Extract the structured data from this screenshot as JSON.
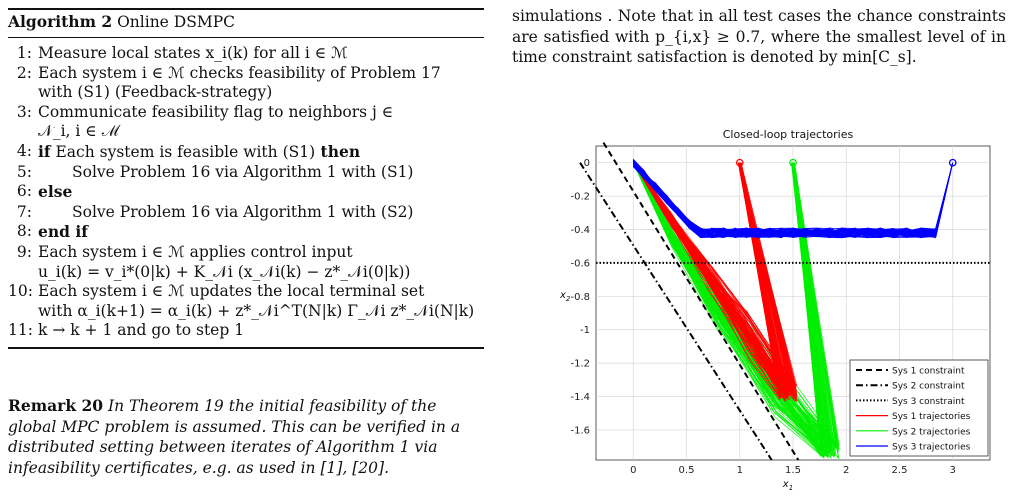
{
  "algorithm": {
    "label": "Algorithm 2",
    "name": "Online DSMPC",
    "steps": [
      {
        "num": "1:",
        "text": "Measure local states x_i(k) for all i ∈ ℳ"
      },
      {
        "num": "2:",
        "text": "Each system i ∈ ℳ checks feasibility of Problem 17"
      },
      {
        "num": "",
        "text": "with (S1) (Feedback-strategy)"
      },
      {
        "num": "3:",
        "text": "Communicate feasibility flag to neighbors j ∈"
      },
      {
        "num": "",
        "text": "𝒩_i, i ∈ ℳ"
      },
      {
        "num": "4:",
        "text": "if Each system is feasible with (S1) then"
      },
      {
        "num": "5:",
        "text": "Solve Problem 16 via Algorithm 1 with (S1)"
      },
      {
        "num": "6:",
        "text": "else"
      },
      {
        "num": "7:",
        "text": "Solve Problem 16 via Algorithm 1 with (S2)"
      },
      {
        "num": "8:",
        "text": "end if"
      },
      {
        "num": "9:",
        "text": "Each system i ∈ ℳ applies control input"
      },
      {
        "num": "",
        "text": "u_i(k) = v_i*(0|k) + K_𝒩i (x_𝒩i(k) − z*_𝒩i(0|k))"
      },
      {
        "num": "10:",
        "text": "Each system i ∈ ℳ updates the local terminal set"
      },
      {
        "num": "",
        "text": "with α_i(k+1) = α_i(k) + z*_𝒩i^T(N|k) Γ_𝒩i z*_𝒩i(N|k)"
      },
      {
        "num": "11:",
        "text": "k → k + 1 and go to step 1"
      }
    ]
  },
  "remark": {
    "label": "Remark 20",
    "text": "In Theorem 19 the initial feasibility of the global MPC problem is assumed. This can be verified in a distributed setting between iterates of Algorithm 1 via infeasibility certificates, e.g. as used in [1], [20]."
  },
  "right_paragraph": "simulations . Note that in all test cases the chance constraints are satisfied with p_{i,x} ≥ 0.7, where the smallest level of in time constraint satisfaction is denoted by min[C_s].",
  "chart_data": {
    "type": "line",
    "title": "Closed-loop trajectories",
    "xlabel": "x1",
    "ylabel": "x2",
    "xlim": [
      -0.35,
      3.35
    ],
    "ylim": [
      -1.78,
      0.1
    ],
    "xticks": [
      0,
      0.5,
      1,
      1.5,
      2,
      2.5,
      3
    ],
    "yticks": [
      0,
      -0.2,
      -0.4,
      -0.6,
      -0.8,
      -1,
      -1.2,
      -1.4,
      -1.6
    ],
    "grid": true,
    "legend_position": "bottom-right",
    "legend": [
      {
        "name": "Sys 1 constraint",
        "style": "dashed",
        "color": "#000000"
      },
      {
        "name": "Sys 2 constraint",
        "style": "dashdot",
        "color": "#000000"
      },
      {
        "name": "Sys 3 constraint",
        "style": "dotted",
        "color": "#000000"
      },
      {
        "name": "Sys 1 trajectories",
        "style": "solid",
        "color": "#ff0000"
      },
      {
        "name": "Sys 2 trajectories",
        "style": "solid",
        "color": "#00ee00"
      },
      {
        "name": "Sys 3 trajectories",
        "style": "solid",
        "color": "#0000ff"
      }
    ],
    "constraints": [
      {
        "name": "Sys 1 constraint",
        "points": [
          [
            -0.28,
            0.12
          ],
          [
            1.55,
            -1.78
          ]
        ]
      },
      {
        "name": "Sys 2 constraint",
        "points": [
          [
            -0.5,
            0.0
          ],
          [
            1.3,
            -1.78
          ]
        ]
      },
      {
        "name": "Sys 3 constraint",
        "points": [
          [
            -0.35,
            -0.6
          ],
          [
            3.35,
            -0.6
          ]
        ]
      }
    ],
    "series": [
      {
        "name": "Sys 1 trajectories",
        "start": [
          1.0,
          0.0
        ],
        "corner": [
          1.45,
          -1.38
        ],
        "end": [
          0.0,
          0.0
        ]
      },
      {
        "name": "Sys 2 trajectories",
        "start": [
          1.5,
          0.0
        ],
        "corner": [
          1.85,
          -1.72
        ],
        "end": [
          0.0,
          0.0
        ]
      },
      {
        "name": "Sys 3 trajectories",
        "start": [
          3.0,
          0.0
        ],
        "end": [
          0.0,
          0.0
        ]
      }
    ]
  }
}
